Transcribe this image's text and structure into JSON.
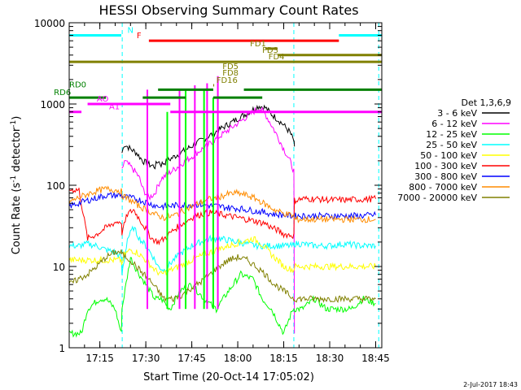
{
  "chart_data": {
    "type": "line",
    "title": "HESSI Observing Summary Count Rates",
    "xlabel": "Start Time (20-Oct-14 17:05:02)",
    "ylabel_main": "Count Rate (s",
    "ylabel_sup": "-1",
    "ylabel_end": " detector",
    "ylabel_sup2": "-1",
    "ylabel_close": ")",
    "footer": "2-Jul-2017 18:43",
    "x_axis": {
      "unit": "minutes since 17:05:02",
      "range": [
        0,
        102
      ],
      "ticks": [
        {
          "x": 10,
          "label": "17:15"
        },
        {
          "x": 25,
          "label": "17:30"
        },
        {
          "x": 40,
          "label": "17:45"
        },
        {
          "x": 55,
          "label": "18:00"
        },
        {
          "x": 70,
          "label": "18:15"
        },
        {
          "x": 85,
          "label": "18:30"
        },
        {
          "x": 100,
          "label": "18:45"
        }
      ]
    },
    "y_axis": {
      "scale": "log",
      "range": [
        1,
        10000
      ],
      "ticks": [
        {
          "y": 1,
          "label": "1"
        },
        {
          "y": 10,
          "label": "10"
        },
        {
          "y": 100,
          "label": "100"
        },
        {
          "y": 1000,
          "label": "1000"
        },
        {
          "y": 10000,
          "label": "10000"
        }
      ]
    },
    "legend": {
      "placement": "right",
      "header": "Det 1,3,6,9",
      "entries": [
        {
          "label": "3 - 6 keV",
          "color": "#000000"
        },
        {
          "label": "6 - 12 keV",
          "color": "#ff00ff"
        },
        {
          "label": "12 - 25 keV",
          "color": "#00ff00"
        },
        {
          "label": "25 - 50 keV",
          "color": "#00ffff"
        },
        {
          "label": "50 - 100 keV",
          "color": "#ffff00"
        },
        {
          "label": "100 - 300 keV",
          "color": "#ff0000"
        },
        {
          "label": "300 - 800 keV",
          "color": "#0000ff"
        },
        {
          "label": "800 - 7000 keV",
          "color": "#ff8c00"
        },
        {
          "label": "7000 - 20000 keV",
          "color": "#808000"
        }
      ]
    },
    "series": [
      {
        "name": "3 - 6 keV",
        "color": "#000000",
        "x": [
          17.2,
          18,
          20,
          22,
          24,
          26,
          28,
          29,
          30,
          62,
          64,
          66,
          68,
          70,
          72,
          73.3,
          73.5
        ],
        "y": [
          250,
          320,
          280,
          250,
          200,
          180,
          170,
          200,
          180,
          950,
          900,
          750,
          650,
          550,
          450,
          350,
          300
        ]
      },
      {
        "name": "6 - 12 keV",
        "color": "#ff00ff",
        "x": [
          17.2,
          18,
          20,
          22,
          23,
          24,
          26,
          28,
          29,
          30,
          62,
          64,
          66,
          68,
          70,
          72,
          73.3,
          73.5
        ],
        "y": [
          150,
          200,
          170,
          140,
          120,
          90,
          70,
          80,
          100,
          120,
          900,
          750,
          550,
          400,
          280,
          200,
          150,
          1.5
        ]
      },
      {
        "name": "12 - 25 keV",
        "color": "#00ff00",
        "x": [
          0,
          4,
          6,
          8,
          10,
          12,
          15,
          17,
          17.2,
          20,
          22,
          25,
          28,
          30,
          33,
          36,
          40,
          44,
          48,
          52,
          56,
          60,
          63,
          66,
          70,
          73,
          76,
          80,
          84,
          88,
          92,
          96,
          100
        ],
        "y": [
          1.5,
          1.5,
          3,
          3.5,
          4,
          4,
          3,
          1.5,
          3,
          13,
          9,
          6,
          4,
          4,
          3,
          5,
          6,
          4,
          3,
          5,
          8,
          7,
          4,
          3,
          1.5,
          3,
          3,
          4,
          3,
          3,
          3,
          4,
          3.5
        ]
      },
      {
        "name": "25 - 50 keV",
        "color": "#00ffff",
        "x": [
          0,
          3,
          3.2,
          6,
          9,
          12,
          15,
          17,
          17.2,
          19,
          21,
          23,
          25,
          27,
          29,
          31,
          34,
          37,
          40,
          43,
          46,
          49,
          52,
          55,
          58,
          61,
          64,
          67,
          70,
          72,
          73.3,
          73.5,
          76,
          80,
          85,
          90,
          95,
          100
        ],
        "y": [
          18,
          18,
          18,
          19,
          18,
          16,
          15,
          13,
          8,
          22,
          30,
          22,
          18,
          14,
          10,
          9,
          12,
          15,
          18,
          20,
          22,
          22,
          21,
          20,
          19,
          18,
          18,
          18,
          18,
          18,
          18,
          19,
          19,
          18,
          18,
          19,
          18,
          18
        ]
      },
      {
        "name": "50 - 100 keV",
        "color": "#ffff00",
        "x": [
          0,
          17,
          17.2,
          18,
          20,
          22,
          24,
          26,
          28,
          30,
          33,
          36,
          40,
          44,
          48,
          52,
          56,
          60,
          62,
          64,
          66,
          68,
          70,
          73.3,
          73.5,
          80,
          90,
          100
        ],
        "y": [
          12,
          12,
          10,
          14,
          16,
          15,
          13,
          11,
          9,
          8,
          9,
          10,
          12,
          14,
          16,
          18,
          20,
          22,
          20,
          17,
          14,
          12,
          10,
          9,
          10,
          10,
          10,
          10
        ]
      },
      {
        "name": "100 - 300 keV",
        "color": "#ff0000",
        "x": [
          0,
          3,
          3.2,
          6,
          9,
          12,
          15,
          17,
          17.2,
          19,
          21,
          23,
          25,
          27,
          29,
          31,
          34,
          37,
          40,
          43,
          46,
          49,
          52,
          55,
          58,
          61,
          62,
          64,
          66,
          68,
          70,
          73.3,
          73.5,
          76,
          80,
          85,
          90,
          95,
          100
        ],
        "y": [
          88,
          88,
          88,
          22,
          25,
          30,
          35,
          36,
          26,
          44,
          50,
          38,
          29,
          22,
          20,
          22,
          28,
          34,
          40,
          44,
          46,
          44,
          42,
          40,
          38,
          36,
          35,
          34,
          30,
          28,
          25,
          24,
          65,
          68,
          68,
          66,
          66,
          67,
          68
        ]
      },
      {
        "name": "300 - 800 keV",
        "color": "#0000ff",
        "x": [
          0,
          3,
          6,
          9,
          12,
          15,
          17,
          17.2,
          20,
          23,
          26,
          29,
          31,
          34,
          37,
          40,
          43,
          46,
          49,
          52,
          55,
          58,
          61,
          64,
          67,
          70,
          73.3,
          73.5,
          76,
          80,
          85,
          90,
          95,
          100
        ],
        "y": [
          55,
          60,
          65,
          70,
          75,
          75,
          75,
          73,
          70,
          66,
          60,
          55,
          55,
          56,
          57,
          58,
          58,
          56,
          55,
          53,
          52,
          50,
          48,
          46,
          44,
          43,
          42,
          42,
          42,
          42,
          42,
          42,
          42,
          43
        ]
      },
      {
        "name": "800 - 7000 keV",
        "color": "#ff8c00",
        "x": [
          0,
          3,
          6,
          9,
          12,
          15,
          17,
          17.2,
          20,
          23,
          26,
          29,
          31,
          34,
          37,
          40,
          43,
          46,
          49,
          52,
          55,
          58,
          61,
          64,
          67,
          70,
          73.3,
          73.5,
          76,
          80,
          85,
          90,
          95,
          100
        ],
        "y": [
          62,
          70,
          78,
          85,
          90,
          88,
          85,
          75,
          65,
          55,
          48,
          42,
          40,
          42,
          48,
          55,
          62,
          68,
          72,
          78,
          80,
          75,
          68,
          58,
          50,
          45,
          42,
          38,
          38,
          38,
          38,
          38,
          38,
          38
        ]
      },
      {
        "name": "7000 - 20000 keV",
        "color": "#808000",
        "x": [
          0,
          3,
          6,
          9,
          12,
          15,
          17,
          17.2,
          20,
          23,
          26,
          29,
          31,
          34,
          37,
          40,
          43,
          46,
          49,
          52,
          55,
          58,
          61,
          64,
          67,
          70,
          73.3,
          73.5,
          76,
          80,
          85,
          90,
          95,
          100
        ],
        "y": [
          6,
          7,
          8,
          10,
          13,
          15,
          15,
          14,
          12,
          9,
          7,
          5,
          4,
          4,
          4.5,
          5.5,
          6.5,
          8,
          10,
          12,
          13,
          12,
          10,
          8,
          6,
          5,
          4,
          4,
          4,
          4,
          4,
          4,
          4,
          4
        ]
      }
    ],
    "spikes": [
      {
        "x": 25.5,
        "y": 1500,
        "color": "#ff00ff"
      },
      {
        "x": 36,
        "y": 1500,
        "color": "#ff00ff"
      },
      {
        "x": 41,
        "y": 1700,
        "color": "#ff00ff"
      },
      {
        "x": 45,
        "y": 1800,
        "color": "#ff00ff"
      },
      {
        "x": 48.5,
        "y": 2200,
        "color": "#ff00ff"
      },
      {
        "x": 32,
        "y": 800,
        "color": "#00ff00"
      },
      {
        "x": 38,
        "y": 1500,
        "color": "#00ff00"
      },
      {
        "x": 44,
        "y": 1500,
        "color": "#00ff00"
      },
      {
        "x": 47,
        "y": 1200,
        "color": "#00ff00"
      }
    ],
    "flags": {
      "rows": [
        {
          "label": "F",
          "y": 6000,
          "color": "#ff0000",
          "segments": [
            [
              26,
              88
            ]
          ],
          "label_x": 22
        },
        {
          "label": "N",
          "y": 7000,
          "color": "#00ffff",
          "segments": [
            [
              -5,
              17
            ],
            [
              88,
              103
            ]
          ],
          "label_x": 19
        },
        {
          "label": "FD1",
          "y": 4800,
          "color": "#808000",
          "segments": [
            [
              64,
              68
            ]
          ],
          "label_x": 59
        },
        {
          "label": "FD3",
          "y": 4000,
          "color": "#808000",
          "segments": [
            [
              68,
              103
            ]
          ],
          "label_x": 63
        },
        {
          "label": "FD4",
          "y": 3300,
          "color": "#808000",
          "segments": [
            [
              -5,
              103
            ]
          ],
          "label_x": 65
        },
        {
          "label": "FD5",
          "y": 2500,
          "color": "#808000",
          "segments": [],
          "label_x": 50
        },
        {
          "label": "FD8",
          "y": 2100,
          "color": "#808000",
          "segments": [],
          "label_x": 50
        },
        {
          "label": "FD16",
          "y": 1700,
          "color": "#808000",
          "segments": [
            [
              47,
              47.3
            ]
          ],
          "label_x": 48
        },
        {
          "label": "RD0",
          "y": 1500,
          "color": "#008000",
          "segments": [
            [
              29,
              47
            ],
            [
              57,
              103
            ]
          ],
          "label_x": 0
        },
        {
          "label": "RD6",
          "y": 1200,
          "color": "#008000",
          "segments": [
            [
              -5,
              12
            ],
            [
              24,
              38
            ],
            [
              47,
              63
            ]
          ],
          "label_x": -5
        },
        {
          "label": "AO",
          "y": 1000,
          "color": "#ff00ff",
          "segments": [
            [
              6,
              33
            ]
          ],
          "label_x": 9
        },
        {
          "label": "A1",
          "y": 800,
          "color": "#ff00ff",
          "segments": [
            [
              -5,
              4
            ],
            [
              33,
              103
            ]
          ],
          "label_x": 13
        }
      ]
    },
    "vlines": {
      "dashed": [
        {
          "x": 17.3,
          "color": "#00ffff"
        },
        {
          "x": 73.3,
          "color": "#00ffff"
        },
        {
          "x": 101,
          "color": "#00ffff"
        }
      ]
    }
  }
}
